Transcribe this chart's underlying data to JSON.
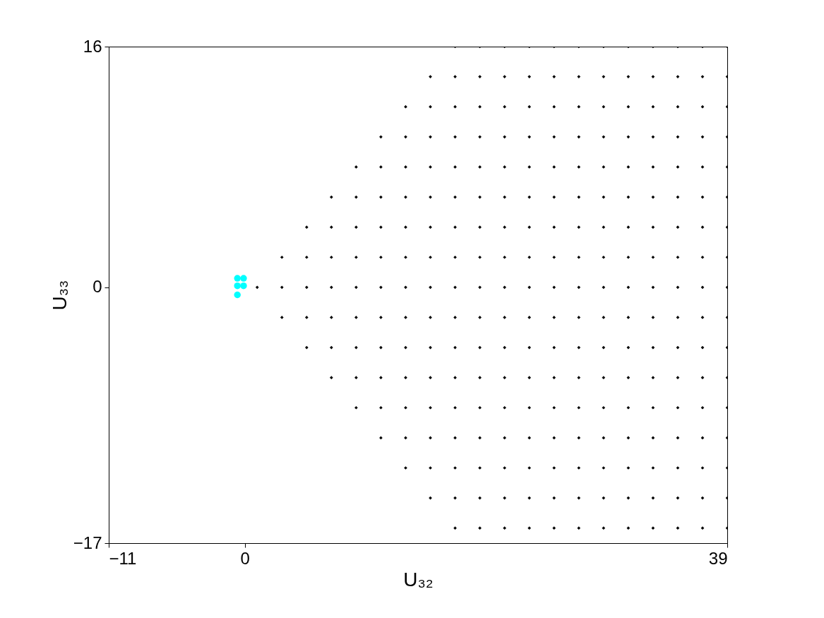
{
  "chart_data": {
    "type": "scatter",
    "xlabel": "U₃₂",
    "ylabel": "U₃₃",
    "xlim": [
      -11,
      39
    ],
    "ylim": [
      -17,
      16
    ],
    "xticks": [
      -11,
      0,
      39
    ],
    "yticks": [
      -17,
      0,
      16
    ],
    "series": [
      {
        "color": "#000000",
        "marker": "diamond",
        "x": [
          1,
          3,
          3,
          3,
          5,
          5,
          5,
          5,
          5,
          7,
          7,
          7,
          7,
          7,
          7,
          7,
          9,
          9,
          9,
          9,
          9,
          9,
          9,
          9,
          9,
          11,
          11,
          11,
          11,
          11,
          11,
          11,
          11,
          11,
          11,
          11,
          13,
          13,
          13,
          13,
          13,
          13,
          13,
          13,
          13,
          13,
          13,
          13,
          13,
          15,
          15,
          15,
          15,
          15,
          15,
          15,
          15,
          15,
          15,
          15,
          15,
          15,
          15,
          15,
          17,
          17,
          17,
          17,
          17,
          17,
          17,
          17,
          17,
          17,
          17,
          17,
          17,
          17,
          17,
          17,
          17,
          19,
          19,
          19,
          19,
          19,
          19,
          19,
          19,
          19,
          19,
          19,
          19,
          19,
          19,
          19,
          19,
          19,
          21,
          21,
          21,
          21,
          21,
          21,
          21,
          21,
          21,
          21,
          21,
          21,
          21,
          21,
          21,
          21,
          21,
          23,
          23,
          23,
          23,
          23,
          23,
          23,
          23,
          23,
          23,
          23,
          23,
          23,
          23,
          23,
          23,
          23,
          25,
          25,
          25,
          25,
          25,
          25,
          25,
          25,
          25,
          25,
          25,
          25,
          25,
          25,
          25,
          25,
          25,
          27,
          27,
          27,
          27,
          27,
          27,
          27,
          27,
          27,
          27,
          27,
          27,
          27,
          27,
          27,
          27,
          27,
          29,
          29,
          29,
          29,
          29,
          29,
          29,
          29,
          29,
          29,
          29,
          29,
          29,
          29,
          29,
          29,
          29,
          31,
          31,
          31,
          31,
          31,
          31,
          31,
          31,
          31,
          31,
          31,
          31,
          31,
          31,
          31,
          31,
          31,
          33,
          33,
          33,
          33,
          33,
          33,
          33,
          33,
          33,
          33,
          33,
          33,
          33,
          33,
          33,
          33,
          33,
          35,
          35,
          35,
          35,
          35,
          35,
          35,
          35,
          35,
          35,
          35,
          35,
          35,
          35,
          35,
          35,
          35,
          37,
          37,
          37,
          37,
          37,
          37,
          37,
          37,
          37,
          37,
          37,
          37,
          37,
          37,
          37,
          37,
          37,
          39,
          39,
          39,
          39,
          39,
          39,
          39,
          39,
          39,
          39,
          39,
          39,
          39,
          39,
          39,
          39,
          39
        ],
        "values": [
          0,
          -2,
          0,
          2,
          -4,
          -2,
          0,
          2,
          4,
          -6,
          -4,
          -2,
          0,
          2,
          4,
          6,
          -8,
          -6,
          -4,
          -2,
          0,
          2,
          4,
          6,
          8,
          -10,
          -8,
          -6,
          -4,
          -2,
          0,
          2,
          4,
          6,
          8,
          10,
          -12,
          -10,
          -8,
          -6,
          -4,
          -2,
          0,
          2,
          4,
          6,
          8,
          10,
          12,
          -14,
          -12,
          -10,
          -8,
          -6,
          -4,
          -2,
          0,
          2,
          4,
          6,
          8,
          10,
          12,
          14,
          -16,
          -14,
          -12,
          -10,
          -8,
          -6,
          -4,
          -2,
          0,
          2,
          4,
          6,
          8,
          10,
          12,
          14,
          16,
          -16,
          -14,
          -12,
          -10,
          -8,
          -6,
          -4,
          -2,
          0,
          2,
          4,
          6,
          8,
          10,
          12,
          14,
          16,
          -16,
          -14,
          -12,
          -10,
          -8,
          -6,
          -4,
          -2,
          0,
          2,
          4,
          6,
          8,
          10,
          12,
          14,
          16,
          -16,
          -14,
          -12,
          -10,
          -8,
          -6,
          -4,
          -2,
          0,
          2,
          4,
          6,
          8,
          10,
          12,
          14,
          16,
          -16,
          -14,
          -12,
          -10,
          -8,
          -6,
          -4,
          -2,
          0,
          2,
          4,
          6,
          8,
          10,
          12,
          14,
          16,
          -16,
          -14,
          -12,
          -10,
          -8,
          -6,
          -4,
          -2,
          0,
          2,
          4,
          6,
          8,
          10,
          12,
          14,
          16,
          -16,
          -14,
          -12,
          -10,
          -8,
          -6,
          -4,
          -2,
          0,
          2,
          4,
          6,
          8,
          10,
          12,
          14,
          16,
          -16,
          -14,
          -12,
          -10,
          -8,
          -6,
          -4,
          -2,
          0,
          2,
          4,
          6,
          8,
          10,
          12,
          14,
          16,
          -16,
          -14,
          -12,
          -10,
          -8,
          -6,
          -4,
          -2,
          0,
          2,
          4,
          6,
          8,
          10,
          12,
          14,
          16,
          -16,
          -14,
          -12,
          -10,
          -8,
          -6,
          -4,
          -2,
          0,
          2,
          4,
          6,
          8,
          10,
          12,
          14,
          16,
          -16,
          -14,
          -12,
          -10,
          -8,
          -6,
          -4,
          -2,
          0,
          2,
          4,
          6,
          8,
          10,
          12,
          14,
          16,
          -16,
          -14,
          -12,
          -10,
          -8,
          -6,
          -4,
          -2,
          0,
          2,
          4,
          6,
          8,
          10,
          12,
          14,
          16
        ]
      },
      {
        "color": "#00ffff",
        "marker": "circle",
        "x": [
          -0.6,
          -0.1,
          -0.6,
          -0.1,
          -0.6
        ],
        "values": [
          0.6,
          0.6,
          0.1,
          0.1,
          -0.5
        ]
      }
    ]
  }
}
